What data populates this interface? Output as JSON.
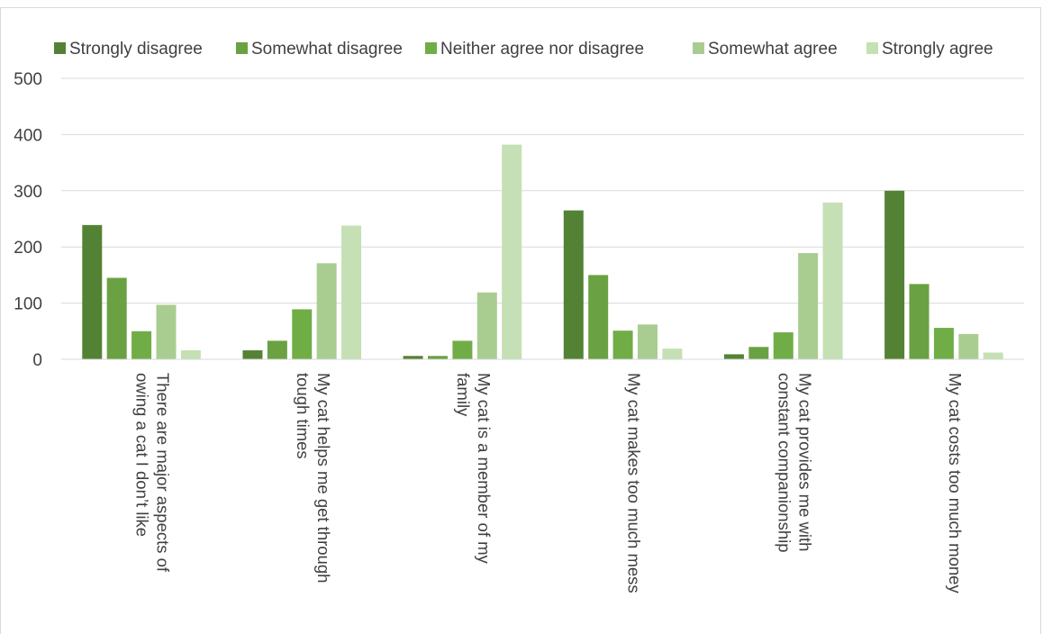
{
  "chart_data": {
    "type": "bar",
    "title": "",
    "xlabel": "",
    "ylabel": "",
    "ylim": [
      0,
      500
    ],
    "yticks": [
      "0",
      "100",
      "200",
      "300",
      "400",
      "500"
    ],
    "grid": true,
    "legend_position": "top",
    "categories": [
      [
        "There are major aspects of",
        "owing a cat I don’t like"
      ],
      [
        "My cat helps me get through",
        "tough times"
      ],
      [
        "My cat is a member of my",
        "family"
      ],
      [
        "My cat makes too much mess"
      ],
      [
        "My cat provides me with",
        "constant companionship"
      ],
      [
        "My cat costs too much money"
      ]
    ],
    "series": [
      {
        "name": "Strongly disagree",
        "color": "#548235",
        "values": [
          239,
          16,
          6,
          265,
          9,
          300
        ]
      },
      {
        "name": "Somewhat disagree",
        "color": "#6aa142",
        "values": [
          145,
          33,
          6,
          150,
          22,
          134
        ]
      },
      {
        "name": "Neither agree nor disagree",
        "color": "#70ad47",
        "values": [
          50,
          89,
          33,
          51,
          48,
          56
        ]
      },
      {
        "name": "Somewhat agree",
        "color": "#a9cd91",
        "values": [
          97,
          171,
          119,
          62,
          189,
          45
        ]
      },
      {
        "name": "Strongly agree",
        "color": "#c5e0b4",
        "values": [
          16,
          238,
          382,
          19,
          279,
          12
        ]
      }
    ]
  }
}
